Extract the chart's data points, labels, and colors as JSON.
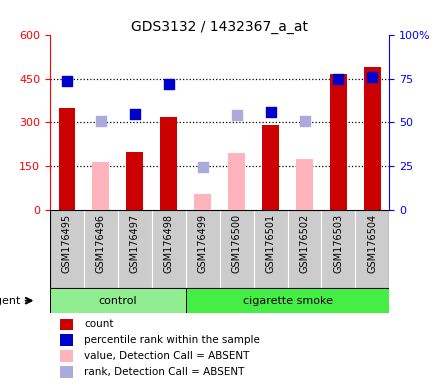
{
  "title": "GDS3132 / 1432367_a_at",
  "samples": [
    "GSM176495",
    "GSM176496",
    "GSM176497",
    "GSM176498",
    "GSM176499",
    "GSM176500",
    "GSM176501",
    "GSM176502",
    "GSM176503",
    "GSM176504"
  ],
  "groups": [
    "control",
    "control",
    "control",
    "control",
    "cigarette smoke",
    "cigarette smoke",
    "cigarette smoke",
    "cigarette smoke",
    "cigarette smoke",
    "cigarette smoke"
  ],
  "count_present": [
    350,
    null,
    200,
    320,
    null,
    null,
    290,
    null,
    465,
    490
  ],
  "count_absent": [
    null,
    165,
    null,
    null,
    55,
    195,
    null,
    175,
    null,
    null
  ],
  "rank_present": [
    440,
    null,
    330,
    430,
    null,
    null,
    335,
    null,
    450,
    455
  ],
  "rank_absent": [
    null,
    305,
    null,
    null,
    148,
    325,
    null,
    305,
    null,
    null
  ],
  "ylim_left": [
    0,
    600
  ],
  "ylim_right": [
    0,
    100
  ],
  "yticks_left": [
    0,
    150,
    300,
    450,
    600
  ],
  "ytick_labels_left": [
    "0",
    "150",
    "300",
    "450",
    "600"
  ],
  "ytick_labels_right": [
    "0",
    "25",
    "50",
    "75",
    "100%"
  ],
  "hlines": [
    150,
    300,
    450
  ],
  "color_bar_present": "#cc0000",
  "color_bar_absent": "#ffb3ba",
  "color_dot_present": "#0000cc",
  "color_dot_absent": "#aaaadd",
  "color_xtick_bg": "#cccccc",
  "color_control_bg": "#90ee90",
  "color_smoke_bg": "#44ee44",
  "dot_size": 55,
  "bar_width": 0.5,
  "legend_items": [
    {
      "label": "count",
      "color": "#cc0000"
    },
    {
      "label": "percentile rank within the sample",
      "color": "#0000cc"
    },
    {
      "label": "value, Detection Call = ABSENT",
      "color": "#ffb3ba"
    },
    {
      "label": "rank, Detection Call = ABSENT",
      "color": "#aaaadd"
    }
  ]
}
